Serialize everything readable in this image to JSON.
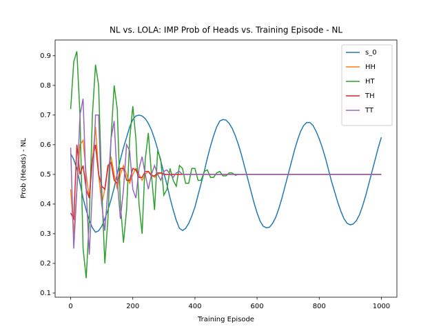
{
  "chart_data": {
    "type": "line",
    "title": "NL vs. LOLA: IMP Prob of Heads vs. Training Episode - NL",
    "x_label": "Training Episode",
    "y_label": "Prob (Heads) - NL",
    "x": [
      0,
      10,
      20,
      30,
      40,
      50,
      60,
      70,
      80,
      90,
      100,
      110,
      120,
      130,
      140,
      150,
      160,
      170,
      180,
      190,
      200,
      210,
      220,
      230,
      240,
      250,
      260,
      270,
      280,
      290,
      300,
      310,
      320,
      330,
      340,
      350,
      360,
      370,
      380,
      390,
      400,
      410,
      420,
      430,
      440,
      450,
      460,
      470,
      480,
      490,
      500,
      510,
      520,
      530,
      540,
      550,
      560,
      570,
      580,
      590,
      600,
      610,
      620,
      630,
      640,
      650,
      660,
      670,
      680,
      690,
      700,
      710,
      720,
      730,
      740,
      750,
      760,
      770,
      780,
      790,
      800,
      810,
      820,
      830,
      840,
      850,
      860,
      870,
      880,
      890,
      900,
      910,
      920,
      930,
      940,
      950,
      960,
      970,
      980,
      990,
      1000
    ],
    "series": [
      {
        "name": "s_0",
        "color": "#1f77b4",
        "values": [
          0.57,
          0.55,
          0.52,
          0.47,
          0.42,
          0.38,
          0.345,
          0.32,
          0.305,
          0.31,
          0.325,
          0.35,
          0.38,
          0.415,
          0.455,
          0.502,
          0.55,
          0.59,
          0.625,
          0.66,
          0.685,
          0.697,
          0.7,
          0.697,
          0.688,
          0.672,
          0.65,
          0.62,
          0.585,
          0.545,
          0.505,
          0.465,
          0.42,
          0.38,
          0.345,
          0.318,
          0.311,
          0.318,
          0.335,
          0.36,
          0.39,
          0.43,
          0.47,
          0.51,
          0.555,
          0.595,
          0.63,
          0.66,
          0.68,
          0.685,
          0.683,
          0.672,
          0.655,
          0.63,
          0.6,
          0.565,
          0.525,
          0.485,
          0.445,
          0.405,
          0.37,
          0.342,
          0.325,
          0.32,
          0.322,
          0.335,
          0.355,
          0.385,
          0.42,
          0.46,
          0.5,
          0.54,
          0.58,
          0.615,
          0.645,
          0.665,
          0.675,
          0.675,
          0.665,
          0.645,
          0.62,
          0.59,
          0.555,
          0.515,
          0.475,
          0.44,
          0.405,
          0.375,
          0.35,
          0.335,
          0.33,
          0.333,
          0.345,
          0.365,
          0.395,
          0.43,
          0.47,
          0.51,
          0.55,
          0.59,
          0.625
        ]
      },
      {
        "name": "HH",
        "color": "#ff7f0e",
        "values": [
          0.45,
          0.3,
          0.45,
          0.6,
          0.615,
          0.5,
          0.42,
          0.55,
          0.66,
          0.5,
          0.4,
          0.45,
          0.52,
          0.56,
          0.5,
          0.45,
          0.5,
          0.53,
          0.5,
          0.47,
          0.5,
          0.52,
          0.5,
          0.48,
          0.5,
          0.51,
          0.5,
          0.49,
          0.5,
          0.505,
          0.5,
          0.5,
          0.5,
          0.5,
          0.5,
          0.5,
          0.5,
          0.5,
          0.5,
          0.5,
          0.5,
          0.5,
          0.5,
          0.5,
          0.5,
          0.5,
          0.5,
          0.5,
          0.5,
          0.5,
          0.5,
          0.5,
          0.5,
          0.5,
          0.5,
          0.5,
          0.5,
          0.5,
          0.5,
          0.5,
          0.5,
          0.5,
          0.5,
          0.5,
          0.5,
          0.5,
          0.5,
          0.5,
          0.5,
          0.5,
          0.5,
          0.5,
          0.5,
          0.5,
          0.5,
          0.5,
          0.5,
          0.5,
          0.5,
          0.5,
          0.5,
          0.5,
          0.5,
          0.5,
          0.5,
          0.5,
          0.5,
          0.5,
          0.5,
          0.5,
          0.5,
          0.5,
          0.5,
          0.5,
          0.5,
          0.5,
          0.5,
          0.5,
          0.5,
          0.5,
          0.5
        ]
      },
      {
        "name": "HT",
        "color": "#2ca02c",
        "values": [
          0.72,
          0.88,
          0.915,
          0.7,
          0.25,
          0.15,
          0.35,
          0.7,
          0.87,
          0.8,
          0.45,
          0.2,
          0.35,
          0.62,
          0.8,
          0.72,
          0.4,
          0.27,
          0.38,
          0.62,
          0.73,
          0.62,
          0.4,
          0.3,
          0.55,
          0.64,
          0.5,
          0.38,
          0.58,
          0.55,
          0.43,
          0.45,
          0.52,
          0.48,
          0.46,
          0.53,
          0.52,
          0.47,
          0.47,
          0.52,
          0.52,
          0.48,
          0.48,
          0.51,
          0.515,
          0.49,
          0.49,
          0.505,
          0.51,
          0.495,
          0.495,
          0.505,
          0.505,
          0.497,
          0.5,
          0.5,
          0.5,
          0.5,
          0.5,
          0.5,
          0.5,
          0.5,
          0.5,
          0.5,
          0.5,
          0.5,
          0.5,
          0.5,
          0.5,
          0.5,
          0.5,
          0.5,
          0.5,
          0.5,
          0.5,
          0.5,
          0.5,
          0.5,
          0.5,
          0.5,
          0.5,
          0.5,
          0.5,
          0.5,
          0.5,
          0.5,
          0.5,
          0.5,
          0.5,
          0.5,
          0.5,
          0.5,
          0.5,
          0.5,
          0.5,
          0.5,
          0.5,
          0.5,
          0.5,
          0.5,
          0.5
        ]
      },
      {
        "name": "TH",
        "color": "#d62728",
        "values": [
          0.37,
          0.35,
          0.6,
          0.5,
          0.53,
          0.45,
          0.42,
          0.55,
          0.6,
          0.5,
          0.46,
          0.45,
          0.53,
          0.54,
          0.48,
          0.47,
          0.52,
          0.52,
          0.48,
          0.48,
          0.52,
          0.515,
          0.49,
          0.49,
          0.51,
          0.51,
          0.495,
          0.495,
          0.505,
          0.505,
          0.5,
          0.5,
          0.5,
          0.5,
          0.5,
          0.5,
          0.5,
          0.5,
          0.5,
          0.5,
          0.5,
          0.5,
          0.5,
          0.5,
          0.5,
          0.5,
          0.5,
          0.5,
          0.5,
          0.5,
          0.5,
          0.5,
          0.5,
          0.5,
          0.5,
          0.5,
          0.5,
          0.5,
          0.5,
          0.5,
          0.5,
          0.5,
          0.5,
          0.5,
          0.5,
          0.5,
          0.5,
          0.5,
          0.5,
          0.5,
          0.5,
          0.5,
          0.5,
          0.5,
          0.5,
          0.5,
          0.5,
          0.5,
          0.5,
          0.5,
          0.5,
          0.5,
          0.5,
          0.5,
          0.5,
          0.5,
          0.5,
          0.5,
          0.5,
          0.5,
          0.5,
          0.5,
          0.5,
          0.5,
          0.5,
          0.5,
          0.5,
          0.5,
          0.5,
          0.5,
          0.5
        ]
      },
      {
        "name": "TT",
        "color": "#9467bd",
        "values": [
          0.59,
          0.25,
          0.45,
          0.7,
          0.755,
          0.45,
          0.23,
          0.45,
          0.7,
          0.7,
          0.4,
          0.31,
          0.45,
          0.62,
          0.68,
          0.48,
          0.35,
          0.45,
          0.6,
          0.58,
          0.45,
          0.42,
          0.52,
          0.56,
          0.5,
          0.45,
          0.5,
          0.53,
          0.5,
          0.48,
          0.51,
          0.515,
          0.5,
          0.49,
          0.505,
          0.51,
          0.5,
          0.5,
          0.5,
          0.5,
          0.5,
          0.5,
          0.5,
          0.5,
          0.5,
          0.5,
          0.5,
          0.5,
          0.5,
          0.5,
          0.5,
          0.5,
          0.5,
          0.5,
          0.5,
          0.5,
          0.5,
          0.5,
          0.5,
          0.5,
          0.5,
          0.5,
          0.5,
          0.5,
          0.5,
          0.5,
          0.5,
          0.5,
          0.5,
          0.5,
          0.5,
          0.5,
          0.5,
          0.5,
          0.5,
          0.5,
          0.5,
          0.5,
          0.5,
          0.5,
          0.5,
          0.5,
          0.5,
          0.5,
          0.5,
          0.5,
          0.5,
          0.5,
          0.5,
          0.5,
          0.5,
          0.5,
          0.5,
          0.5,
          0.5,
          0.5,
          0.5,
          0.5,
          0.5,
          0.5,
          0.5
        ]
      }
    ],
    "xlim": [
      -50,
      1050
    ],
    "ylim": [
      0.086,
      0.953
    ],
    "xticks": [
      0,
      200,
      400,
      600,
      800,
      1000
    ],
    "yticks": [
      0.1,
      0.2,
      0.3,
      0.4,
      0.5,
      0.6,
      0.7,
      0.8,
      0.9
    ],
    "legend": "upper right"
  }
}
